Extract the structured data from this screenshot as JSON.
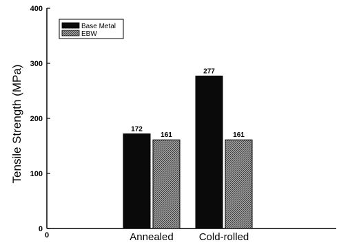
{
  "chart_data": {
    "type": "bar",
    "categories": [
      "Annealed",
      "Cold-rolled"
    ],
    "series": [
      {
        "name": "Base Metal",
        "values": [
          172,
          277
        ],
        "color": "#0a0a0a",
        "pattern": "solid"
      },
      {
        "name": "EBW",
        "values": [
          161,
          161
        ],
        "color": "#7a7a7a",
        "pattern": "hatched"
      }
    ],
    "data_labels": [
      [
        "172",
        "277"
      ],
      [
        "161",
        "161"
      ]
    ],
    "title": "",
    "xlabel": "",
    "ylabel": "Tensile Strength (MPa)",
    "ylim": [
      0,
      400
    ],
    "yticks": [
      0,
      100,
      200,
      300,
      400
    ],
    "x_origin_label": "0",
    "legend_position": "top-left",
    "grid": false
  }
}
